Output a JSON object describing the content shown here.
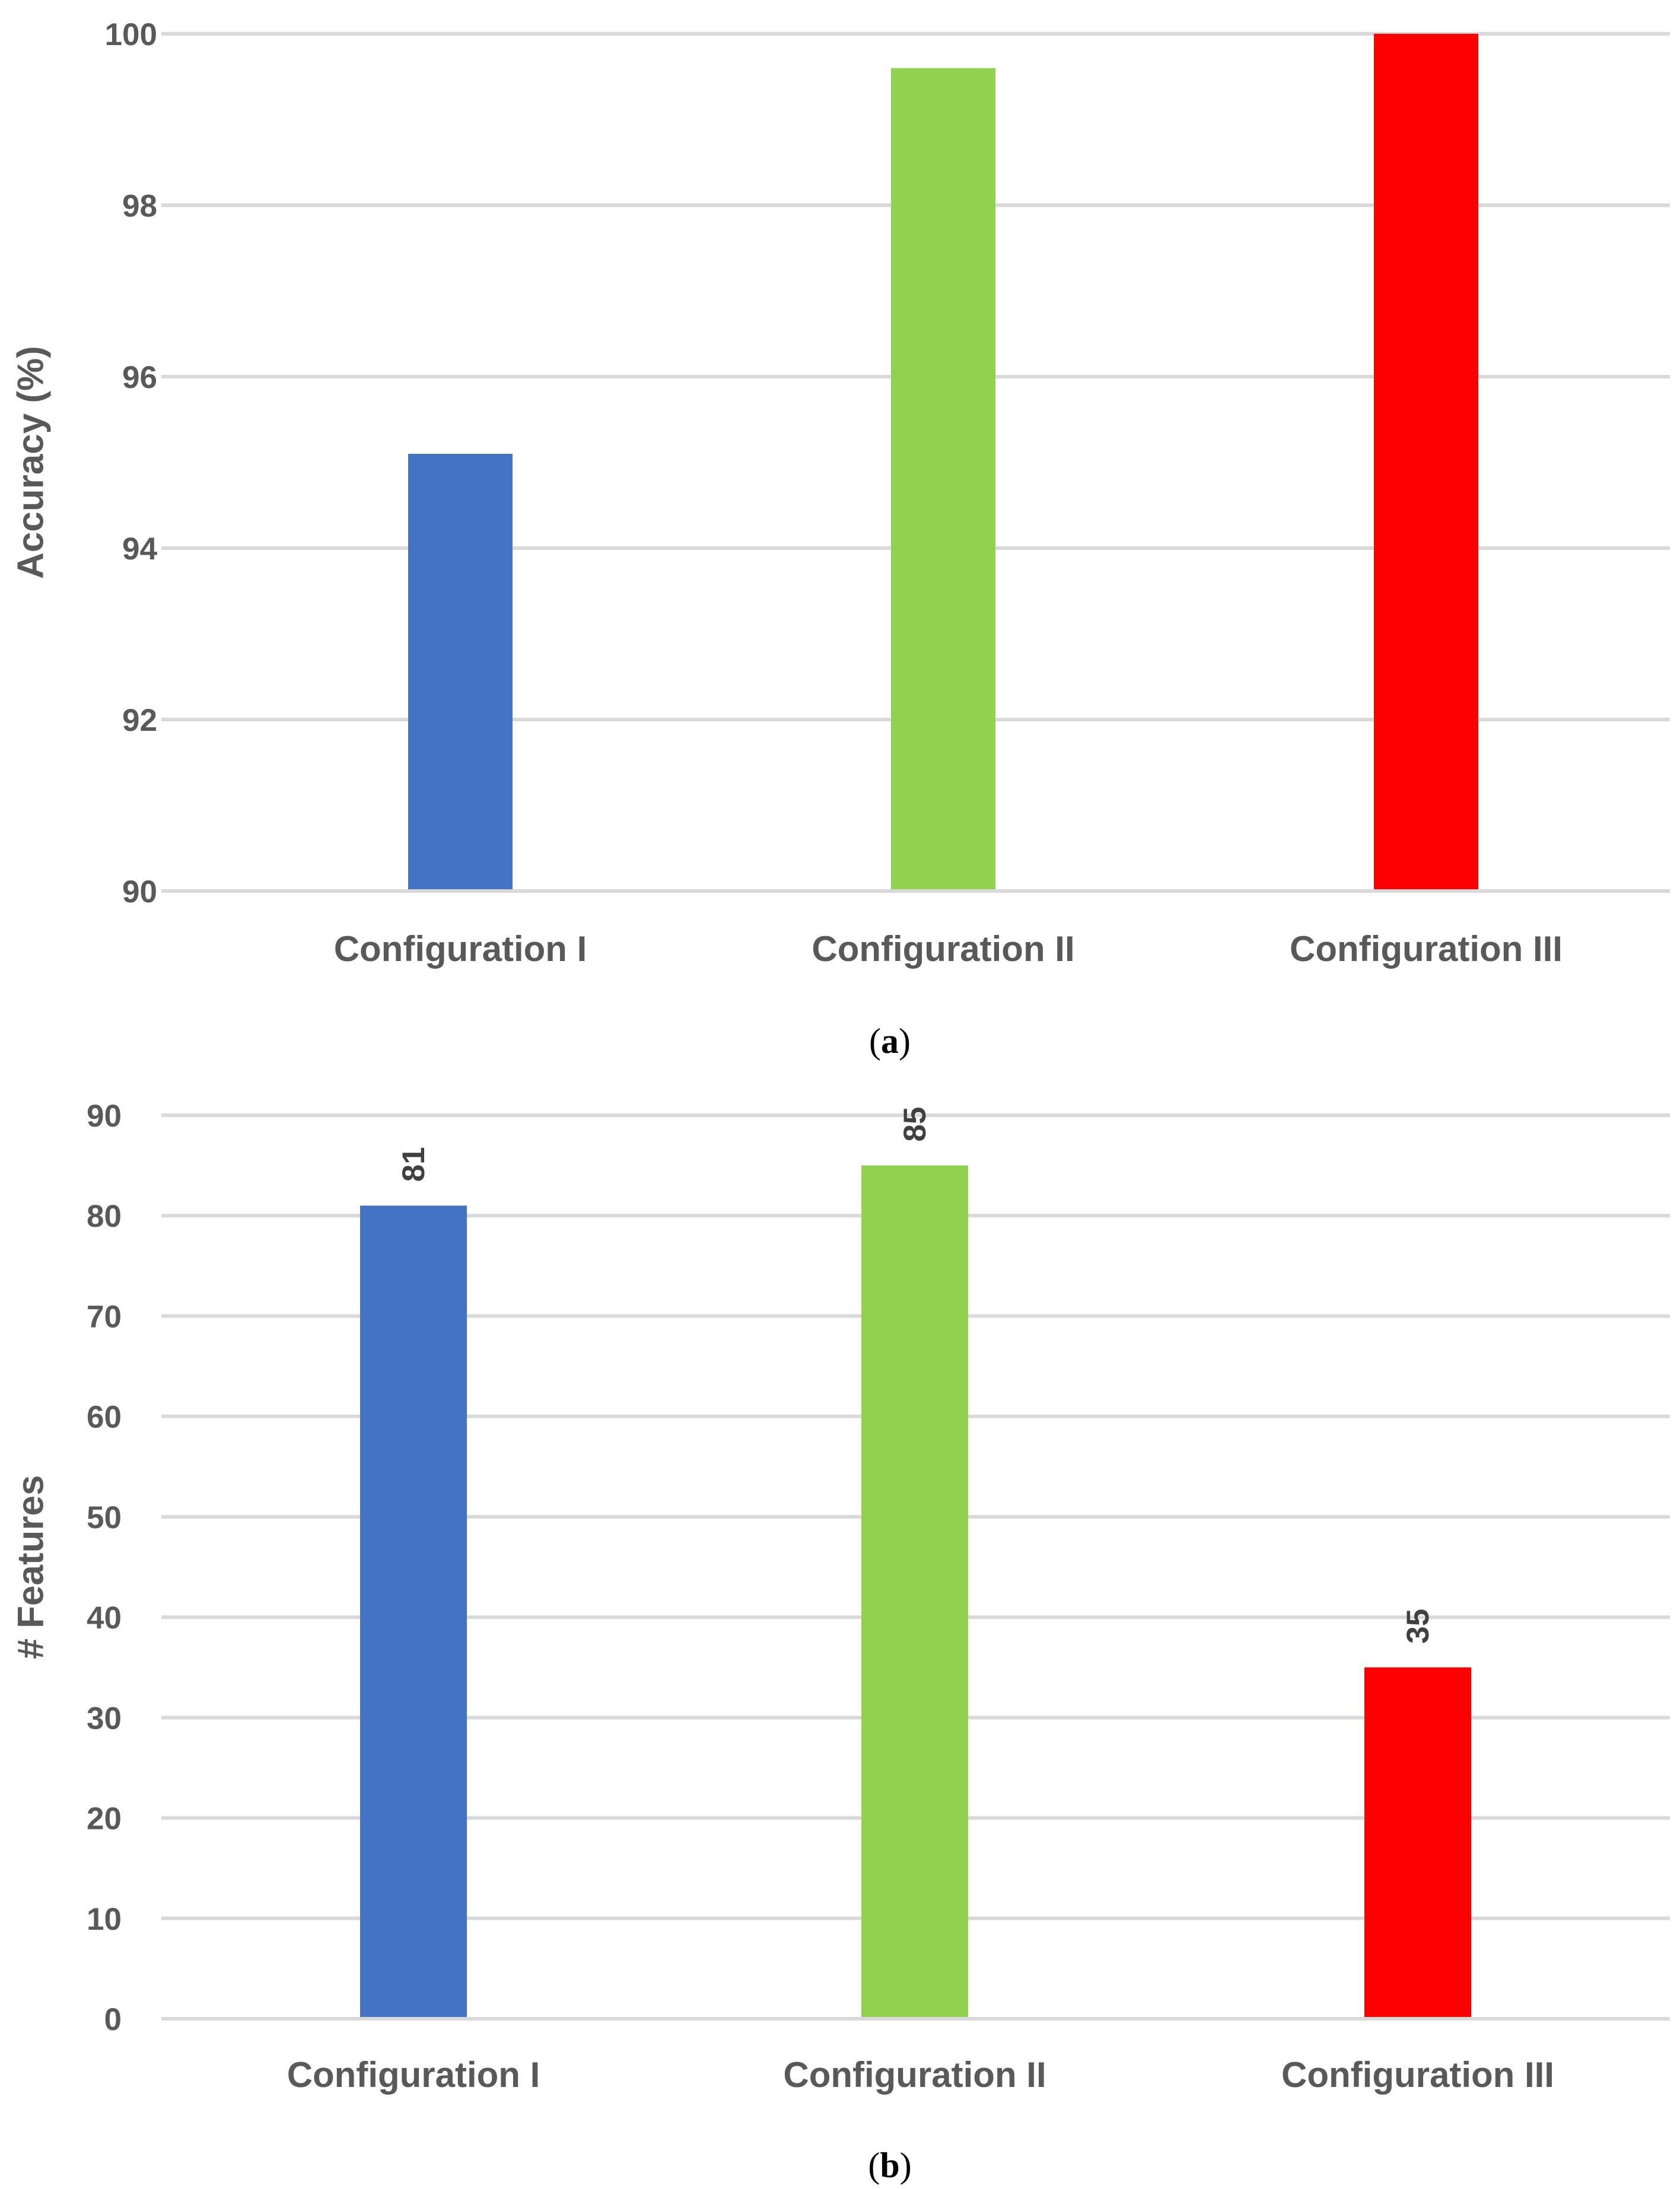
{
  "chart_data": [
    {
      "type": "bar",
      "categories": [
        "Configuration I",
        "Configuration II",
        "Configuration III"
      ],
      "values": [
        95.1,
        99.6,
        100
      ],
      "colors": [
        "#4472c4",
        "#92d050",
        "#ff0000"
      ],
      "ylabel": "Accuracy (%)",
      "xlabel": "",
      "title": "",
      "ylim": [
        90,
        100
      ],
      "yticks": [
        90,
        92,
        94,
        96,
        98,
        100
      ],
      "data_labels": [],
      "grid": true,
      "caption": {
        "open": "(",
        "letter": "a",
        "close": ")"
      }
    },
    {
      "type": "bar",
      "categories": [
        "Configuration I",
        "Configuration II",
        "Configuration III"
      ],
      "values": [
        81,
        85,
        35
      ],
      "colors": [
        "#4472c4",
        "#92d050",
        "#ff0000"
      ],
      "ylabel": "# Features",
      "xlabel": "",
      "title": "",
      "ylim": [
        0,
        90
      ],
      "yticks": [
        0,
        10,
        20,
        30,
        40,
        50,
        60,
        70,
        80,
        90
      ],
      "data_labels": [
        "81",
        "85",
        "35"
      ],
      "grid": true,
      "caption": {
        "open": "(",
        "letter": "b",
        "close": ")"
      }
    }
  ]
}
